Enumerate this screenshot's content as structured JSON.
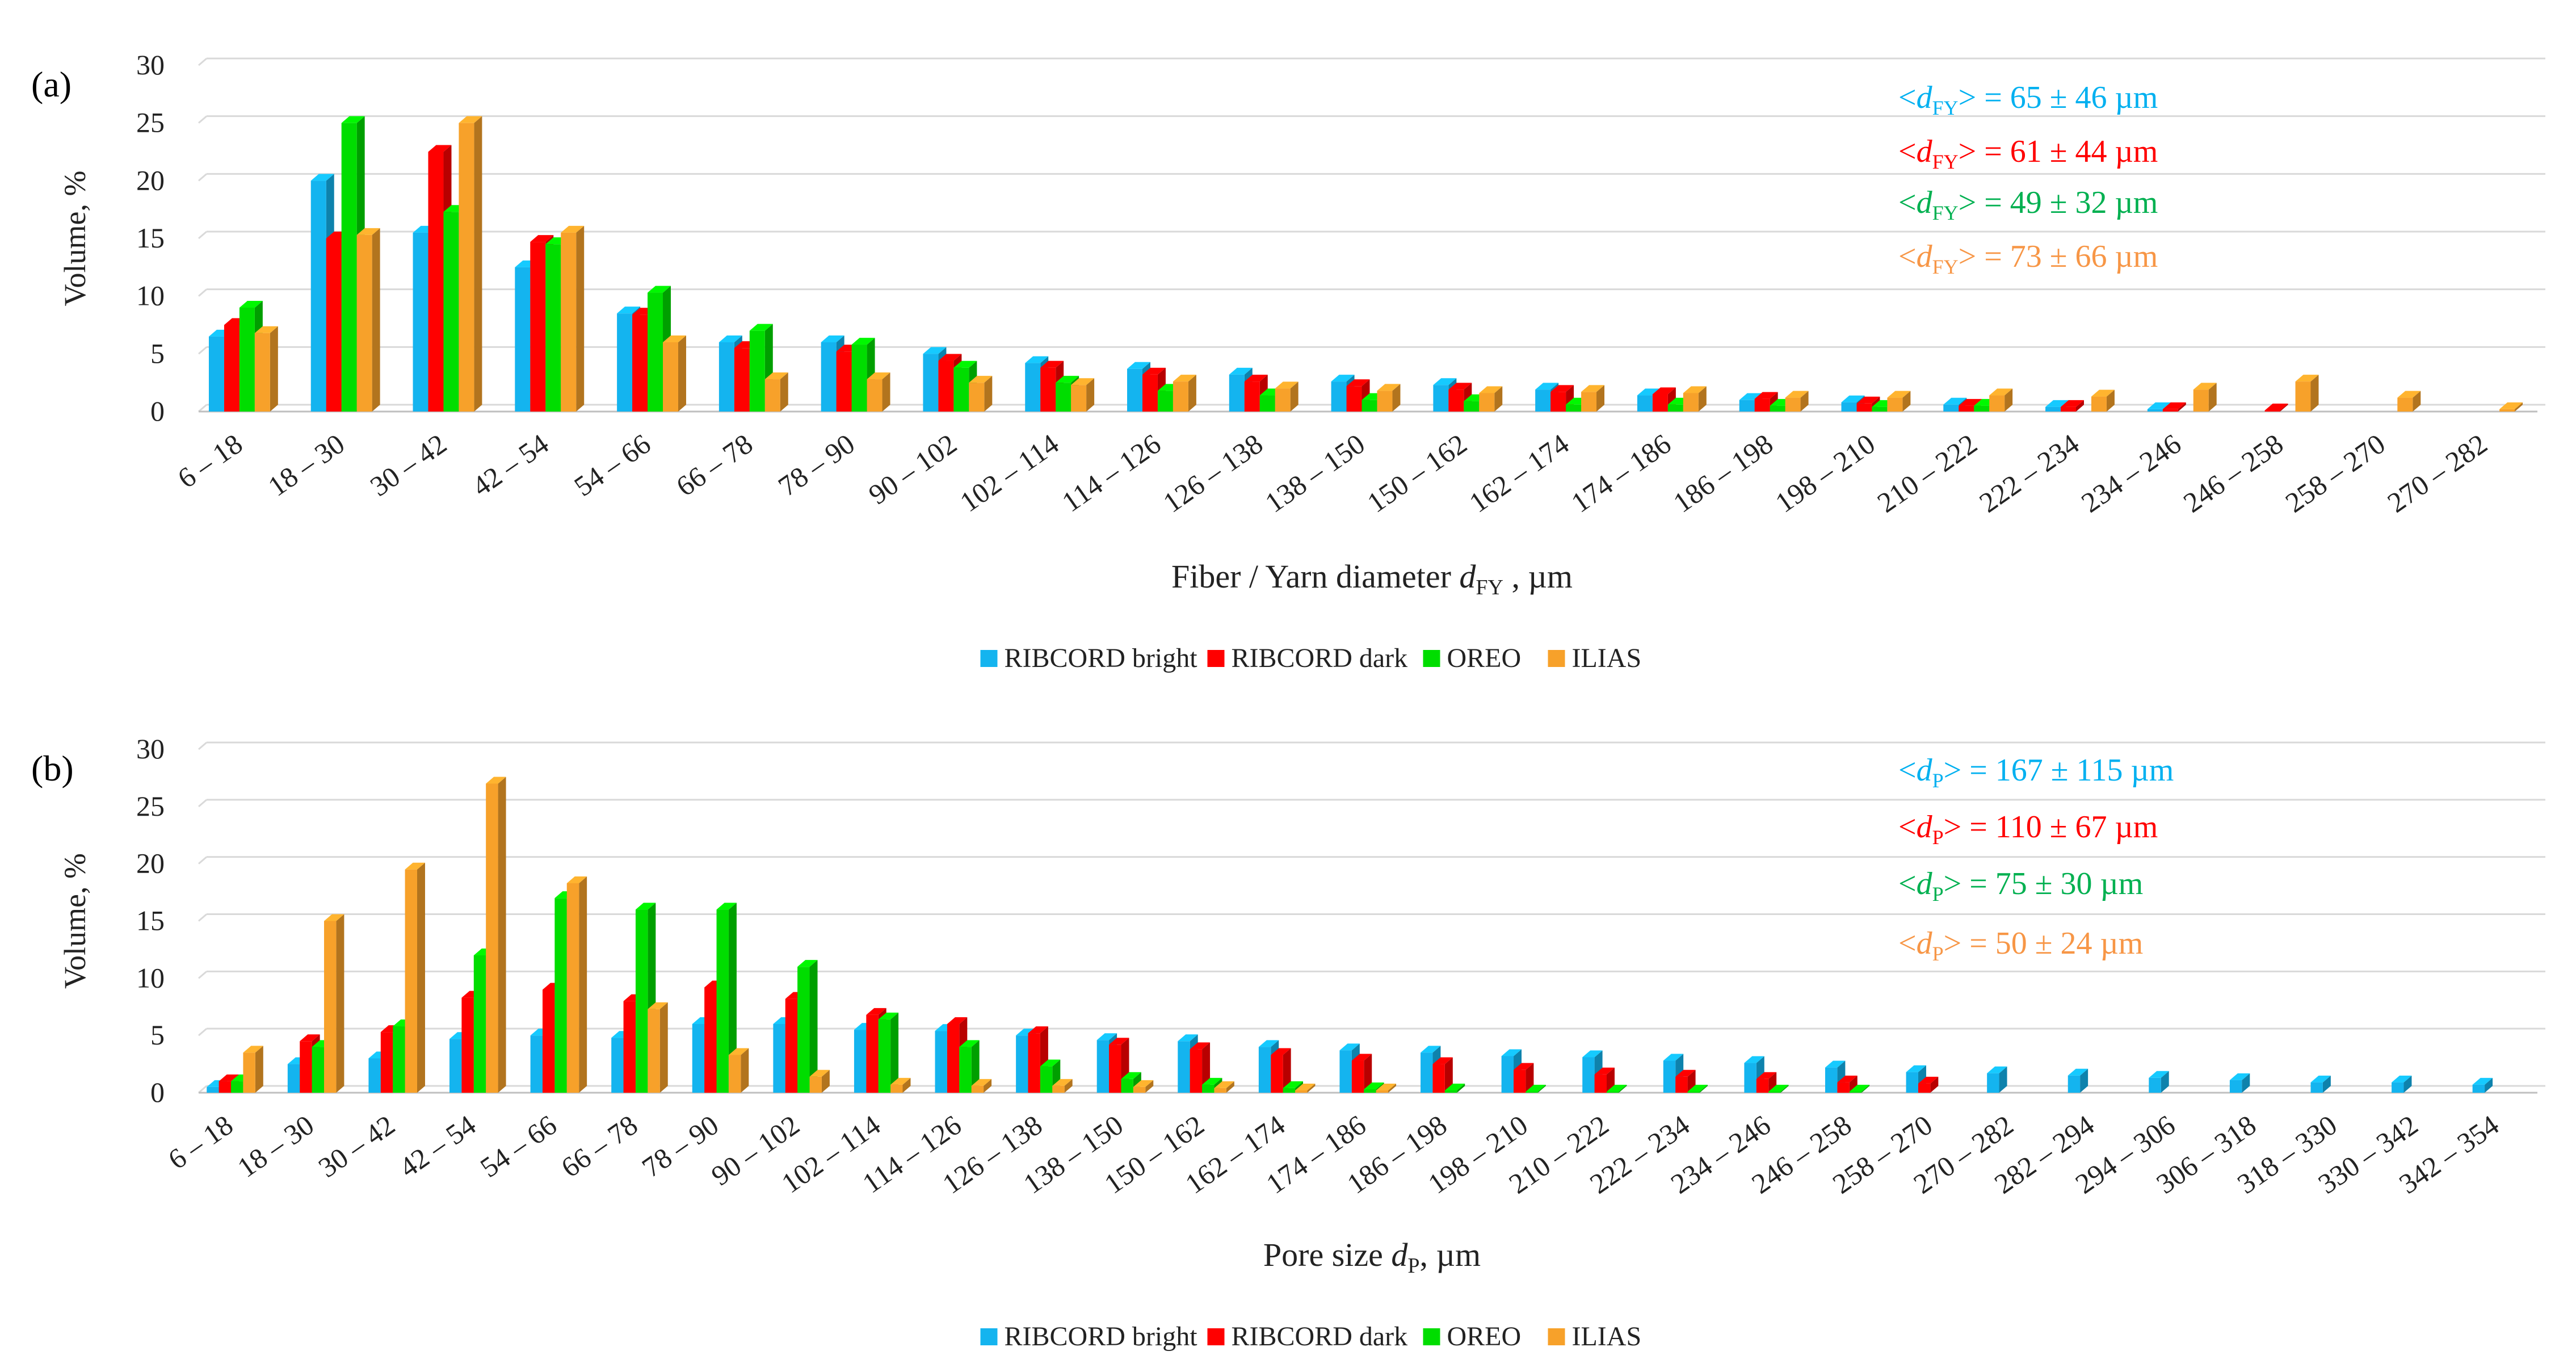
{
  "colors": {
    "RIBCORD bright": "#14b4ef",
    "RIBCORD dark": "#ff0000",
    "OREO": "#00dd00",
    "ILIAS": "#f7a12a",
    "grid": "#d9d9d9",
    "ann_bright": "#00b0f0",
    "ann_dark": "#ff0000",
    "ann_oreo": "#00b050",
    "ann_ilias": "#f79646"
  },
  "chart_data": [
    {
      "panel_label": "(a)",
      "type": "bar",
      "title": "",
      "ylabel": "Volume, %",
      "xlabel": {
        "prefix": "Fiber / Yarn diameter ",
        "var": "d",
        "sub": "FY",
        "suffix": " , µm"
      },
      "ylim": [
        0,
        30
      ],
      "yticks": [
        "0",
        "5",
        "10",
        "15",
        "20",
        "25",
        "30"
      ],
      "categories": [
        "6 – 18",
        "18 – 30",
        "30 – 42",
        "42 – 54",
        "54 – 66",
        "66 – 78",
        "78 – 90",
        "90 – 102",
        "102 – 114",
        "114 – 126",
        "126 – 138",
        "138 – 150",
        "150 – 162",
        "162 – 174",
        "174 – 186",
        "186 – 198",
        "198 – 210",
        "210 – 222",
        "222 – 234",
        "234 – 246",
        "246 – 258",
        "258 – 270",
        "270 – 282"
      ],
      "series": [
        {
          "name": "RIBCORD bright",
          "values": [
            6.5,
            20,
            15.5,
            12.5,
            8.5,
            6,
            6,
            5,
            4.2,
            3.7,
            3.2,
            2.6,
            2.3,
            1.9,
            1.4,
            1,
            0.8,
            0.6,
            0.4,
            0.2,
            0,
            0,
            0
          ]
        },
        {
          "name": "RIBCORD dark",
          "values": [
            7.5,
            15,
            22.5,
            14.7,
            8.4,
            5.5,
            5.2,
            4.4,
            3.8,
            3.2,
            2.6,
            2.2,
            1.9,
            1.7,
            1.5,
            1.1,
            0.7,
            0.5,
            0.4,
            0.2,
            0.1,
            0,
            0
          ]
        },
        {
          "name": "OREO",
          "values": [
            9,
            25,
            17.3,
            14.5,
            10.3,
            7,
            5.8,
            3.8,
            2.5,
            1.8,
            1.4,
            1,
            0.9,
            0.6,
            0.6,
            0.5,
            0.4,
            0.5,
            0,
            0,
            0,
            0,
            0
          ]
        },
        {
          "name": "ILIAS",
          "values": [
            6.8,
            15.3,
            25,
            15.5,
            6,
            2.8,
            2.8,
            2.5,
            2.3,
            2.6,
            2,
            1.8,
            1.6,
            1.7,
            1.6,
            1.2,
            1.2,
            1.4,
            1.3,
            1.9,
            2.6,
            1.2,
            0.2
          ]
        }
      ],
      "legend": [
        "RIBCORD bright",
        "RIBCORD dark",
        "OREO",
        "ILIAS"
      ],
      "annotations": [
        {
          "open": "<",
          "var": "d",
          "sub": "FY",
          "rest": "> = 65 ± 46 µm"
        },
        {
          "open": "<",
          "var": "d",
          "sub": "FY",
          "rest": "> = 61 ± 44 µm"
        },
        {
          "open": "<",
          "var": "d",
          "sub": "FY",
          "rest": "> = 49 ± 32 µm"
        },
        {
          "open": "<",
          "var": "d",
          "sub": "FY",
          "rest": "> = 73 ± 66 µm"
        }
      ]
    },
    {
      "panel_label": "(b)",
      "type": "bar",
      "title": "",
      "ylabel": "Volume, %",
      "xlabel": {
        "prefix": "Pore size ",
        "var": "d",
        "sub": "P",
        "suffix": ", µm"
      },
      "ylim": [
        0,
        30
      ],
      "yticks": [
        "0",
        "5",
        "10",
        "15",
        "20",
        "25",
        "30"
      ],
      "categories": [
        "6 – 18",
        "18 – 30",
        "30 – 42",
        "42 – 54",
        "54 – 66",
        "66 – 78",
        "78 – 90",
        "90 – 102",
        "102 – 114",
        "114 – 126",
        "126 – 138",
        "138 – 150",
        "150 – 162",
        "162 – 174",
        "174 – 186",
        "186 – 198",
        "198 – 210",
        "210 – 222",
        "222 – 234",
        "234 – 246",
        "246 – 258",
        "258 – 270",
        "270 – 282",
        "282 – 294",
        "294 – 306",
        "306 – 318",
        "318 – 330",
        "330 – 342",
        "342 – 354"
      ],
      "series": [
        {
          "name": "RIBCORD bright",
          "values": [
            0.5,
            2.5,
            3,
            4.7,
            5,
            4.8,
            6,
            6,
            5.5,
            5.4,
            5,
            4.6,
            4.5,
            4,
            3.7,
            3.5,
            3.2,
            3.1,
            2.8,
            2.6,
            2.2,
            1.8,
            1.7,
            1.5,
            1.3,
            1.1,
            0.9,
            0.9,
            0.7
          ]
        },
        {
          "name": "RIBCORD dark",
          "values": [
            1,
            4.5,
            5.3,
            8.3,
            9,
            8,
            9.2,
            8.2,
            6.8,
            6,
            5.2,
            4.2,
            3.8,
            3.3,
            2.8,
            2.5,
            2,
            1.6,
            1.4,
            1.2,
            0.9,
            0.8,
            0,
            0,
            0,
            0,
            0,
            0,
            0
          ]
        },
        {
          "name": "OREO",
          "values": [
            1,
            4,
            5.8,
            12,
            17,
            16,
            16,
            11,
            6.4,
            4,
            2.3,
            1.2,
            0.7,
            0.4,
            0.3,
            0.2,
            0.1,
            0.1,
            0.1,
            0.1,
            0.1,
            0,
            0,
            0,
            0,
            0,
            0,
            0,
            0
          ]
        },
        {
          "name": "ILIAS",
          "values": [
            3.5,
            15,
            19.5,
            27,
            18.3,
            7.3,
            3.3,
            1.4,
            0.7,
            0.6,
            0.6,
            0.5,
            0.4,
            0.2,
            0.2,
            0,
            0,
            0,
            0,
            0,
            0,
            0,
            0,
            0,
            0,
            0,
            0,
            0,
            0
          ]
        }
      ],
      "legend": [
        "RIBCORD bright",
        "RIBCORD dark",
        "OREO",
        "ILIAS"
      ],
      "annotations": [
        {
          "open": "<",
          "var": "d",
          "sub": "P",
          "rest": "> = 167 ± 115 µm"
        },
        {
          "open": "<",
          "var": "d",
          "sub": "P",
          "rest": "> = 110 ± 67 µm"
        },
        {
          "open": "<",
          "var": "d",
          "sub": "P",
          "rest": "> = 75 ± 30 µm"
        },
        {
          "open": "<",
          "var": "d",
          "sub": "P",
          "rest": "> = 50 ± 24 µm"
        }
      ]
    }
  ]
}
